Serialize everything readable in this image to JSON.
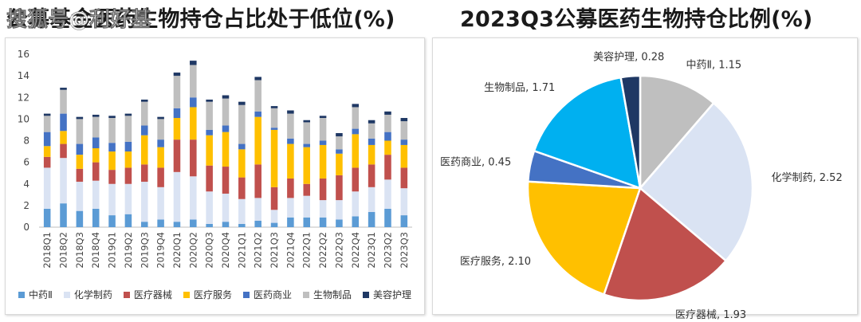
{
  "watermark": "搜狐号@利好基",
  "chart_data": [
    {
      "type": "bar",
      "stacked": true,
      "title": "公募基金医药生物持仓占比处于低位(%)",
      "categories": [
        "2018Q1",
        "2018Q2",
        "2018Q3",
        "2018Q4",
        "2019Q1",
        "2019Q2",
        "2019Q3",
        "2019Q4",
        "2020Q1",
        "2020Q2",
        "2020Q3",
        "2020Q4",
        "2021Q1",
        "2021Q2",
        "2021Q3",
        "2021Q4",
        "2022Q1",
        "2022Q2",
        "2022Q3",
        "2022Q4",
        "2023Q1",
        "2023Q2",
        "2023Q3"
      ],
      "ylim": [
        0,
        16
      ],
      "yticks": [
        0,
        2,
        4,
        6,
        8,
        10,
        12,
        14,
        16
      ],
      "legend_position": "bottom",
      "series": [
        {
          "name": "中药Ⅱ",
          "color": "#5B9BD5",
          "values": [
            1.7,
            2.2,
            1.5,
            1.7,
            1.1,
            1.2,
            0.5,
            0.7,
            0.5,
            0.7,
            0.3,
            0.5,
            0.3,
            0.6,
            0.4,
            0.9,
            0.9,
            0.9,
            0.7,
            1.0,
            1.4,
            1.7,
            1.1
          ]
        },
        {
          "name": "化学制药",
          "color": "#DAE3F3",
          "values": [
            3.8,
            4.2,
            2.7,
            2.6,
            2.9,
            2.8,
            3.7,
            3.0,
            4.6,
            4.0,
            3.0,
            2.6,
            2.3,
            2.1,
            1.2,
            1.8,
            2.0,
            1.6,
            1.8,
            2.3,
            2.3,
            2.7,
            2.5
          ]
        },
        {
          "name": "医疗器械",
          "color": "#C0504D",
          "values": [
            1.0,
            1.3,
            1.2,
            1.7,
            1.3,
            1.5,
            1.6,
            1.8,
            3.0,
            3.4,
            2.4,
            2.5,
            2.0,
            3.1,
            2.1,
            1.8,
            1.1,
            2.0,
            2.3,
            2.2,
            2.1,
            2.3,
            1.9
          ]
        },
        {
          "name": "医疗服务",
          "color": "#FFC000",
          "values": [
            1.0,
            1.2,
            1.3,
            1.3,
            1.7,
            1.5,
            2.7,
            1.9,
            2.0,
            3.0,
            2.8,
            3.2,
            2.6,
            4.4,
            5.3,
            3.2,
            3.4,
            3.1,
            2.0,
            3.1,
            1.8,
            1.3,
            2.1
          ]
        },
        {
          "name": "医药商业",
          "color": "#4472C4",
          "values": [
            1.3,
            1.6,
            1.0,
            1.0,
            0.8,
            0.9,
            0.9,
            0.7,
            0.9,
            0.9,
            0.5,
            0.6,
            0.5,
            0.5,
            0.2,
            0.5,
            0.3,
            0.4,
            0.4,
            0.5,
            0.6,
            0.8,
            0.5
          ]
        },
        {
          "name": "生物制品",
          "color": "#BFBFBF",
          "values": [
            1.5,
            2.2,
            2.3,
            1.9,
            2.3,
            2.4,
            2.2,
            1.9,
            3.0,
            3.0,
            2.6,
            2.5,
            3.6,
            2.9,
            1.8,
            2.3,
            2.0,
            2.1,
            1.2,
            2.0,
            1.4,
            1.6,
            1.7
          ]
        },
        {
          "name": "美容护理",
          "color": "#1F3864",
          "values": [
            0.2,
            0.2,
            0.2,
            0.2,
            0.2,
            0.2,
            0.2,
            0.2,
            0.3,
            0.4,
            0.2,
            0.3,
            0.3,
            0.3,
            0.2,
            0.3,
            0.2,
            0.2,
            0.3,
            0.3,
            0.3,
            0.3,
            0.3
          ]
        }
      ]
    },
    {
      "type": "pie",
      "title": "2023Q3公募医药生物持仓比例(%)",
      "categories": [
        "中药Ⅱ",
        "化学制药",
        "医疗器械",
        "医疗服务",
        "医药商业",
        "生物制品",
        "美容护理"
      ],
      "values": [
        1.15,
        2.52,
        1.93,
        2.1,
        0.45,
        1.71,
        0.28
      ],
      "labels": [
        "中药Ⅱ, 1.15",
        "化学制药, 2.52",
        "医疗器械, 1.93",
        "医疗服务, 2.10",
        "医药商业, 0.45",
        "生物制品, 1.71",
        "美容护理, 0.28"
      ],
      "colors": [
        "#BFBFBF",
        "#DAE3F3",
        "#C0504D",
        "#FFC000",
        "#4472C4",
        "#00B0F0",
        "#1F3864"
      ],
      "start_angle_deg": 0,
      "direction": "clockwise"
    }
  ]
}
